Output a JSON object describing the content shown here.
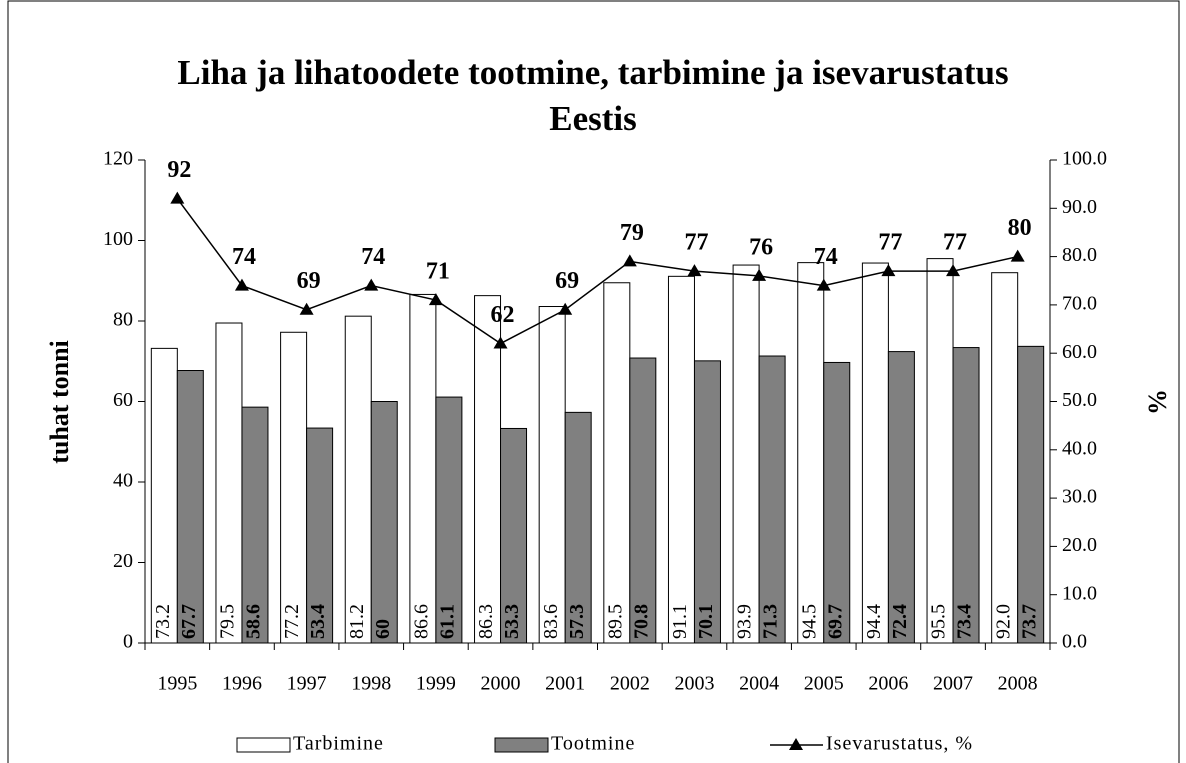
{
  "chart_data": {
    "type": "bar",
    "title": [
      "Liha ja lihatoodete tootmine, tarbimine ja isevarustatus",
      "Eestis"
    ],
    "ylabel": "tuhat tonni",
    "y2label": "%",
    "categories": [
      "1995",
      "1996",
      "1997",
      "1998",
      "1999",
      "2000",
      "2001",
      "2002",
      "2003",
      "2004",
      "2005",
      "2006",
      "2007",
      "2008"
    ],
    "series": [
      {
        "name": "Tarbimine",
        "type": "bar",
        "color": "#ffffff",
        "values": [
          73.2,
          79.5,
          77.2,
          81.2,
          86.6,
          86.3,
          83.6,
          89.5,
          91.1,
          93.9,
          94.5,
          94.4,
          95.5,
          92.0
        ],
        "value_labels": [
          "73.2",
          "79.5",
          "77.2",
          "81.2",
          "86.6",
          "86.3",
          "83.6",
          "89.5",
          "91.1",
          "93.9",
          "94.5",
          "94.4",
          "95.5",
          "92.0"
        ]
      },
      {
        "name": "Tootmine",
        "type": "bar",
        "color": "#808080",
        "values": [
          67.7,
          58.6,
          53.4,
          60,
          61.1,
          53.3,
          57.3,
          70.8,
          70.1,
          71.3,
          69.7,
          72.4,
          73.4,
          73.7
        ]
      },
      {
        "name": "Isevarustatus, %",
        "type": "line",
        "axis": "y2",
        "color": "#000000",
        "values": [
          92,
          74,
          69,
          74,
          71,
          62,
          69,
          79,
          77,
          76,
          74,
          77,
          77,
          80
        ]
      }
    ],
    "ylim": [
      0,
      120
    ],
    "yticks": [
      0,
      20,
      40,
      60,
      80,
      100,
      120
    ],
    "y2lim": [
      0,
      100
    ],
    "y2ticks": [
      {
        "value": 0,
        "label": "0.0"
      },
      {
        "value": 10,
        "label": "10.0"
      },
      {
        "value": 20,
        "label": "20.0"
      },
      {
        "value": 30,
        "label": "30.0"
      },
      {
        "value": 40,
        "label": "40.0"
      },
      {
        "value": 50,
        "label": "50.0"
      },
      {
        "value": 60,
        "label": "60.0"
      },
      {
        "value": 70,
        "label": "70.0"
      },
      {
        "value": 80,
        "label": "80.0"
      },
      {
        "value": 90,
        "label": "90.0"
      },
      {
        "value": 100,
        "label": "100.0"
      }
    ],
    "grid": false,
    "legend": "bottom"
  }
}
